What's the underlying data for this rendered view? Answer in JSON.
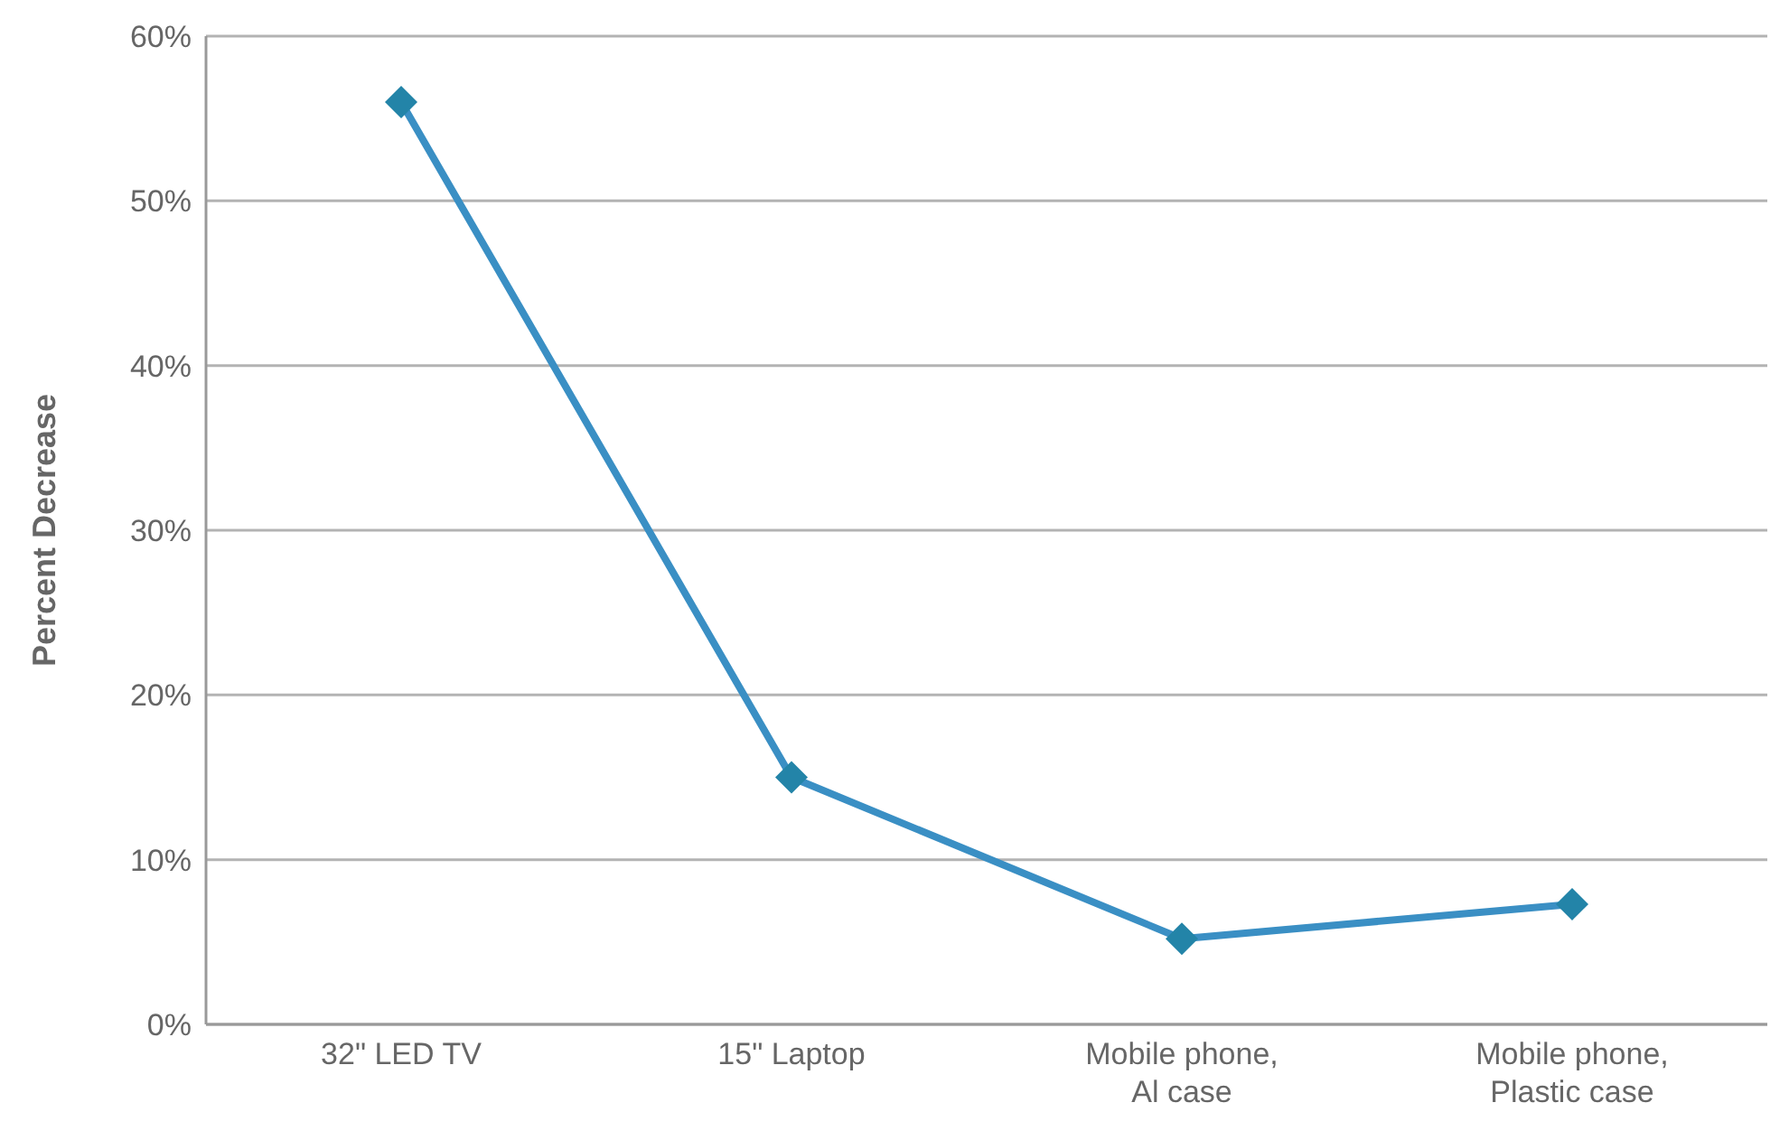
{
  "chart_data": {
    "type": "line",
    "ylabel": "Percent Decrease",
    "categories": [
      "32\" LED TV",
      "15\" Laptop",
      "Mobile phone, Al case",
      "Mobile phone, Plastic case"
    ],
    "series": [
      {
        "color": "#3a8fc4",
        "values": [
          56,
          15,
          5.2,
          7.3
        ]
      }
    ],
    "ylim": [
      0,
      60
    ],
    "yticks": [
      {
        "value": 0,
        "label": "0%"
      },
      {
        "value": 10,
        "label": "10%"
      },
      {
        "value": 20,
        "label": "20%"
      },
      {
        "value": 30,
        "label": "30%"
      },
      {
        "value": 40,
        "label": "40%"
      },
      {
        "value": 50,
        "label": "50%"
      },
      {
        "value": 60,
        "label": "60%"
      }
    ],
    "grid": "y",
    "marker": "diamond",
    "line_style": "solid",
    "legend": false
  }
}
